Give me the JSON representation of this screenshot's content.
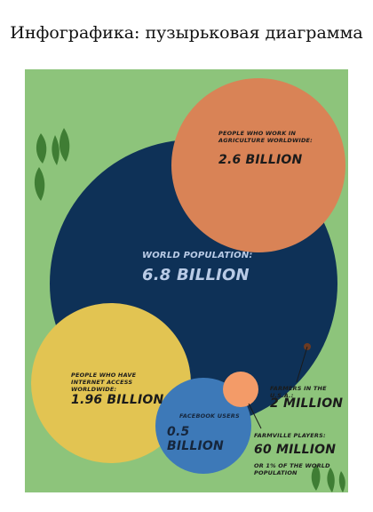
{
  "page_title": "Инфографика: пузырьковая диаграмма",
  "colors": {
    "background": "#8dc47b",
    "world": "#0e3157",
    "agriculture": "#d98356",
    "internet": "#e2c452",
    "facebook": "#3d79b8",
    "farmville": "#f39b68",
    "usa_farmers": "#6b3a22",
    "leaf": "#3f7d34"
  },
  "bubbles": {
    "agriculture": {
      "label": "People who work in agriculture worldwide:",
      "value": "2.6 Billion"
    },
    "world": {
      "label": "World population:",
      "value": "6.8 Billion"
    },
    "internet": {
      "label": "People who have internet access worldwide:",
      "value": "1.96 Billion"
    },
    "facebook": {
      "label": "Facebook users",
      "value": "0.5 Billion"
    },
    "usa_farmers": {
      "label": "Farmers in the U.S.A.:",
      "value": "2 Million"
    },
    "farmville": {
      "label": "Farmville players:",
      "value": "60 Million",
      "note": "Or 1% of the world population"
    }
  }
}
